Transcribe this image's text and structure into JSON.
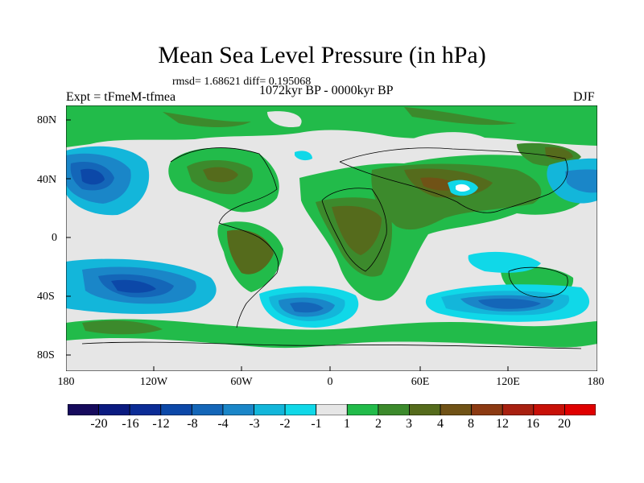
{
  "title": "Mean Sea Level Pressure (in hPa)",
  "stats": "rmsd= 1.68621 diff= 0.195068",
  "period": "1072kyr BP - 0000kyr BP",
  "experiment": "Expt = tFmeM-tfmea",
  "season": "DJF",
  "lat_labels": [
    "80N",
    "40N",
    "0",
    "40S",
    "80S"
  ],
  "lon_labels": [
    "180",
    "120W",
    "60W",
    "0",
    "60E",
    "120E",
    "180"
  ],
  "colorbar": {
    "labels": [
      "-20",
      "-16",
      "-12",
      "-8",
      "-4",
      "-3",
      "-2",
      "-1",
      "1",
      "2",
      "3",
      "4",
      "8",
      "12",
      "16",
      "20"
    ],
    "colors": [
      "#160a5c",
      "#0a1a80",
      "#0b2c96",
      "#0c48a8",
      "#1466b8",
      "#1a86c8",
      "#13b6da",
      "#10d8e8",
      "#e6e6e6",
      "#22bb4a",
      "#3c8a2c",
      "#556b1c",
      "#705216",
      "#8c3a12",
      "#a82010",
      "#c81008",
      "#e00000"
    ]
  },
  "colors": {
    "neutral": "#e6e6e6",
    "green": "#22bb4a",
    "dark_green": "#3c8a2c",
    "olive": "#556b1c",
    "brown": "#705216",
    "cyan": "#10d8e8",
    "light_blue": "#13b6da",
    "mid_blue": "#1a86c8",
    "blue": "#1466b8",
    "deep_blue": "#0c48a8"
  }
}
